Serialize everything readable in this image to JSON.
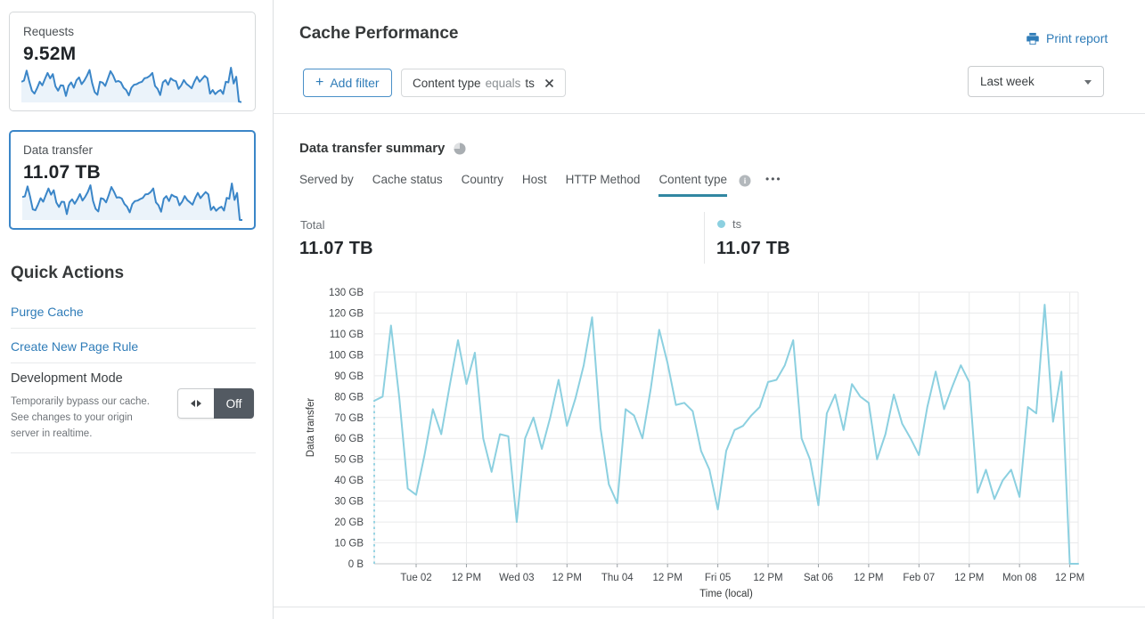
{
  "colors": {
    "accent_blue": "#2f7cb8",
    "sparkline_blue": "#3b86c8",
    "sparkline_fill": "#ebf3fa",
    "chart_line": "#8cd0e0",
    "active_tab_underline": "#3187a2",
    "toggle_off_bg": "#535a62"
  },
  "sidebar": {
    "cards": [
      {
        "label": "Requests",
        "value": "9.52M",
        "selected": false,
        "sparkline": [
          70,
          74,
          108,
          72,
          40,
          30,
          48,
          70,
          58,
          80,
          100,
          82,
          96,
          55,
          40,
          58,
          57,
          22,
          56,
          68,
          50,
          75,
          85,
          62,
          74,
          90,
          110,
          66,
          35,
          26,
          70,
          67,
          56,
          80,
          106,
          92,
          70,
          73,
          68,
          50,
          42,
          24,
          50,
          60,
          62,
          67,
          70,
          82,
          84,
          90,
          100,
          56,
          46,
          25,
          68,
          76,
          60,
          82,
          75,
          72,
          46,
          58,
          76,
          63,
          56,
          48,
          70,
          87,
          70,
          80,
          90,
          82,
          30,
          42,
          28,
          37,
          42,
          29,
          70,
          68,
          118,
          64,
          87,
          3,
          1
        ]
      },
      {
        "label": "Data transfer",
        "value": "11.07 TB",
        "selected": true,
        "sparkline": [
          78,
          80,
          114,
          79,
          36,
          33,
          52,
          74,
          62,
          85,
          107,
          86,
          101,
          60,
          44,
          62,
          61,
          20,
          60,
          70,
          55,
          70,
          88,
          66,
          79,
          95,
          118,
          65,
          38,
          29,
          74,
          71,
          60,
          84,
          112,
          96,
          76,
          77,
          73,
          54,
          45,
          26,
          54,
          64,
          66,
          71,
          75,
          87,
          88,
          95,
          107,
          60,
          50,
          28,
          72,
          81,
          64,
          86,
          80,
          77,
          50,
          62,
          81,
          67,
          60,
          52,
          75,
          92,
          74,
          85,
          95,
          87,
          34,
          45,
          31,
          40,
          45,
          32,
          75,
          72,
          124,
          68,
          92,
          0,
          0
        ]
      }
    ],
    "quick_actions": {
      "title": "Quick Actions",
      "links": [
        {
          "label": "Purge Cache"
        },
        {
          "label": "Create New Page Rule"
        }
      ],
      "dev_mode": {
        "label": "Development Mode",
        "description": "Temporarily bypass our cache. See changes to your origin server in realtime.",
        "toggle_state": "Off"
      }
    }
  },
  "header": {
    "title": "Cache Performance",
    "print_label": "Print report",
    "add_filter_label": "Add filter",
    "filter_chip": {
      "field": "Content type",
      "operator": "equals",
      "value": "ts"
    },
    "time_range": "Last week"
  },
  "summary": {
    "title": "Data transfer summary",
    "tabs": [
      {
        "label": "Served by"
      },
      {
        "label": "Cache status"
      },
      {
        "label": "Country"
      },
      {
        "label": "Host"
      },
      {
        "label": "HTTP Method"
      },
      {
        "label": "Content type",
        "active": true,
        "info": true
      }
    ],
    "more_label": "•••",
    "total_label": "Total",
    "total_value": "11.07 TB",
    "legend": [
      {
        "label": "ts",
        "value": "11.07 TB",
        "color": "#8cd0e0"
      }
    ]
  },
  "chart_data": {
    "type": "line",
    "title": "Data transfer summary",
    "xlabel": "Time (local)",
    "ylabel": "Data transfer",
    "ylim": [
      0,
      130
    ],
    "y_ticks": [
      "0 B",
      "10 GB",
      "20 GB",
      "30 GB",
      "40 GB",
      "50 GB",
      "60 GB",
      "70 GB",
      "80 GB",
      "90 GB",
      "100 GB",
      "110 GB",
      "120 GB",
      "130 GB"
    ],
    "x_ticks": [
      {
        "label": "Tue 02",
        "hour": 10
      },
      {
        "label": "12 PM",
        "hour": 22
      },
      {
        "label": "Wed 03",
        "hour": 34
      },
      {
        "label": "12 PM",
        "hour": 46
      },
      {
        "label": "Thu 04",
        "hour": 58
      },
      {
        "label": "12 PM",
        "hour": 70
      },
      {
        "label": "Fri 05",
        "hour": 82
      },
      {
        "label": "12 PM",
        "hour": 94
      },
      {
        "label": "Sat 06",
        "hour": 106
      },
      {
        "label": "12 PM",
        "hour": 118
      },
      {
        "label": "Feb 07",
        "hour": 130
      },
      {
        "label": "12 PM",
        "hour": 142
      },
      {
        "label": "Mon 08",
        "hour": 154
      },
      {
        "label": "12 PM",
        "hour": 166
      }
    ],
    "total_hours": 168,
    "grid": true,
    "legend_position": "top-right",
    "series": [
      {
        "name": "ts",
        "color": "#8cd0e0",
        "unit": "GB",
        "interval_hours": 2,
        "values": [
          78,
          80,
          114,
          79,
          36,
          33,
          52,
          74,
          62,
          85,
          107,
          86,
          101,
          60,
          44,
          62,
          61,
          20,
          60,
          70,
          55,
          70,
          88,
          66,
          79,
          95,
          118,
          65,
          38,
          29,
          74,
          71,
          60,
          84,
          112,
          96,
          76,
          77,
          73,
          54,
          45,
          26,
          54,
          64,
          66,
          71,
          75,
          87,
          88,
          95,
          107,
          60,
          50,
          28,
          72,
          81,
          64,
          86,
          80,
          77,
          50,
          62,
          81,
          67,
          60,
          52,
          75,
          92,
          74,
          85,
          95,
          87,
          34,
          45,
          31,
          40,
          45,
          32,
          75,
          72,
          124,
          68,
          92,
          0,
          0
        ]
      }
    ]
  }
}
